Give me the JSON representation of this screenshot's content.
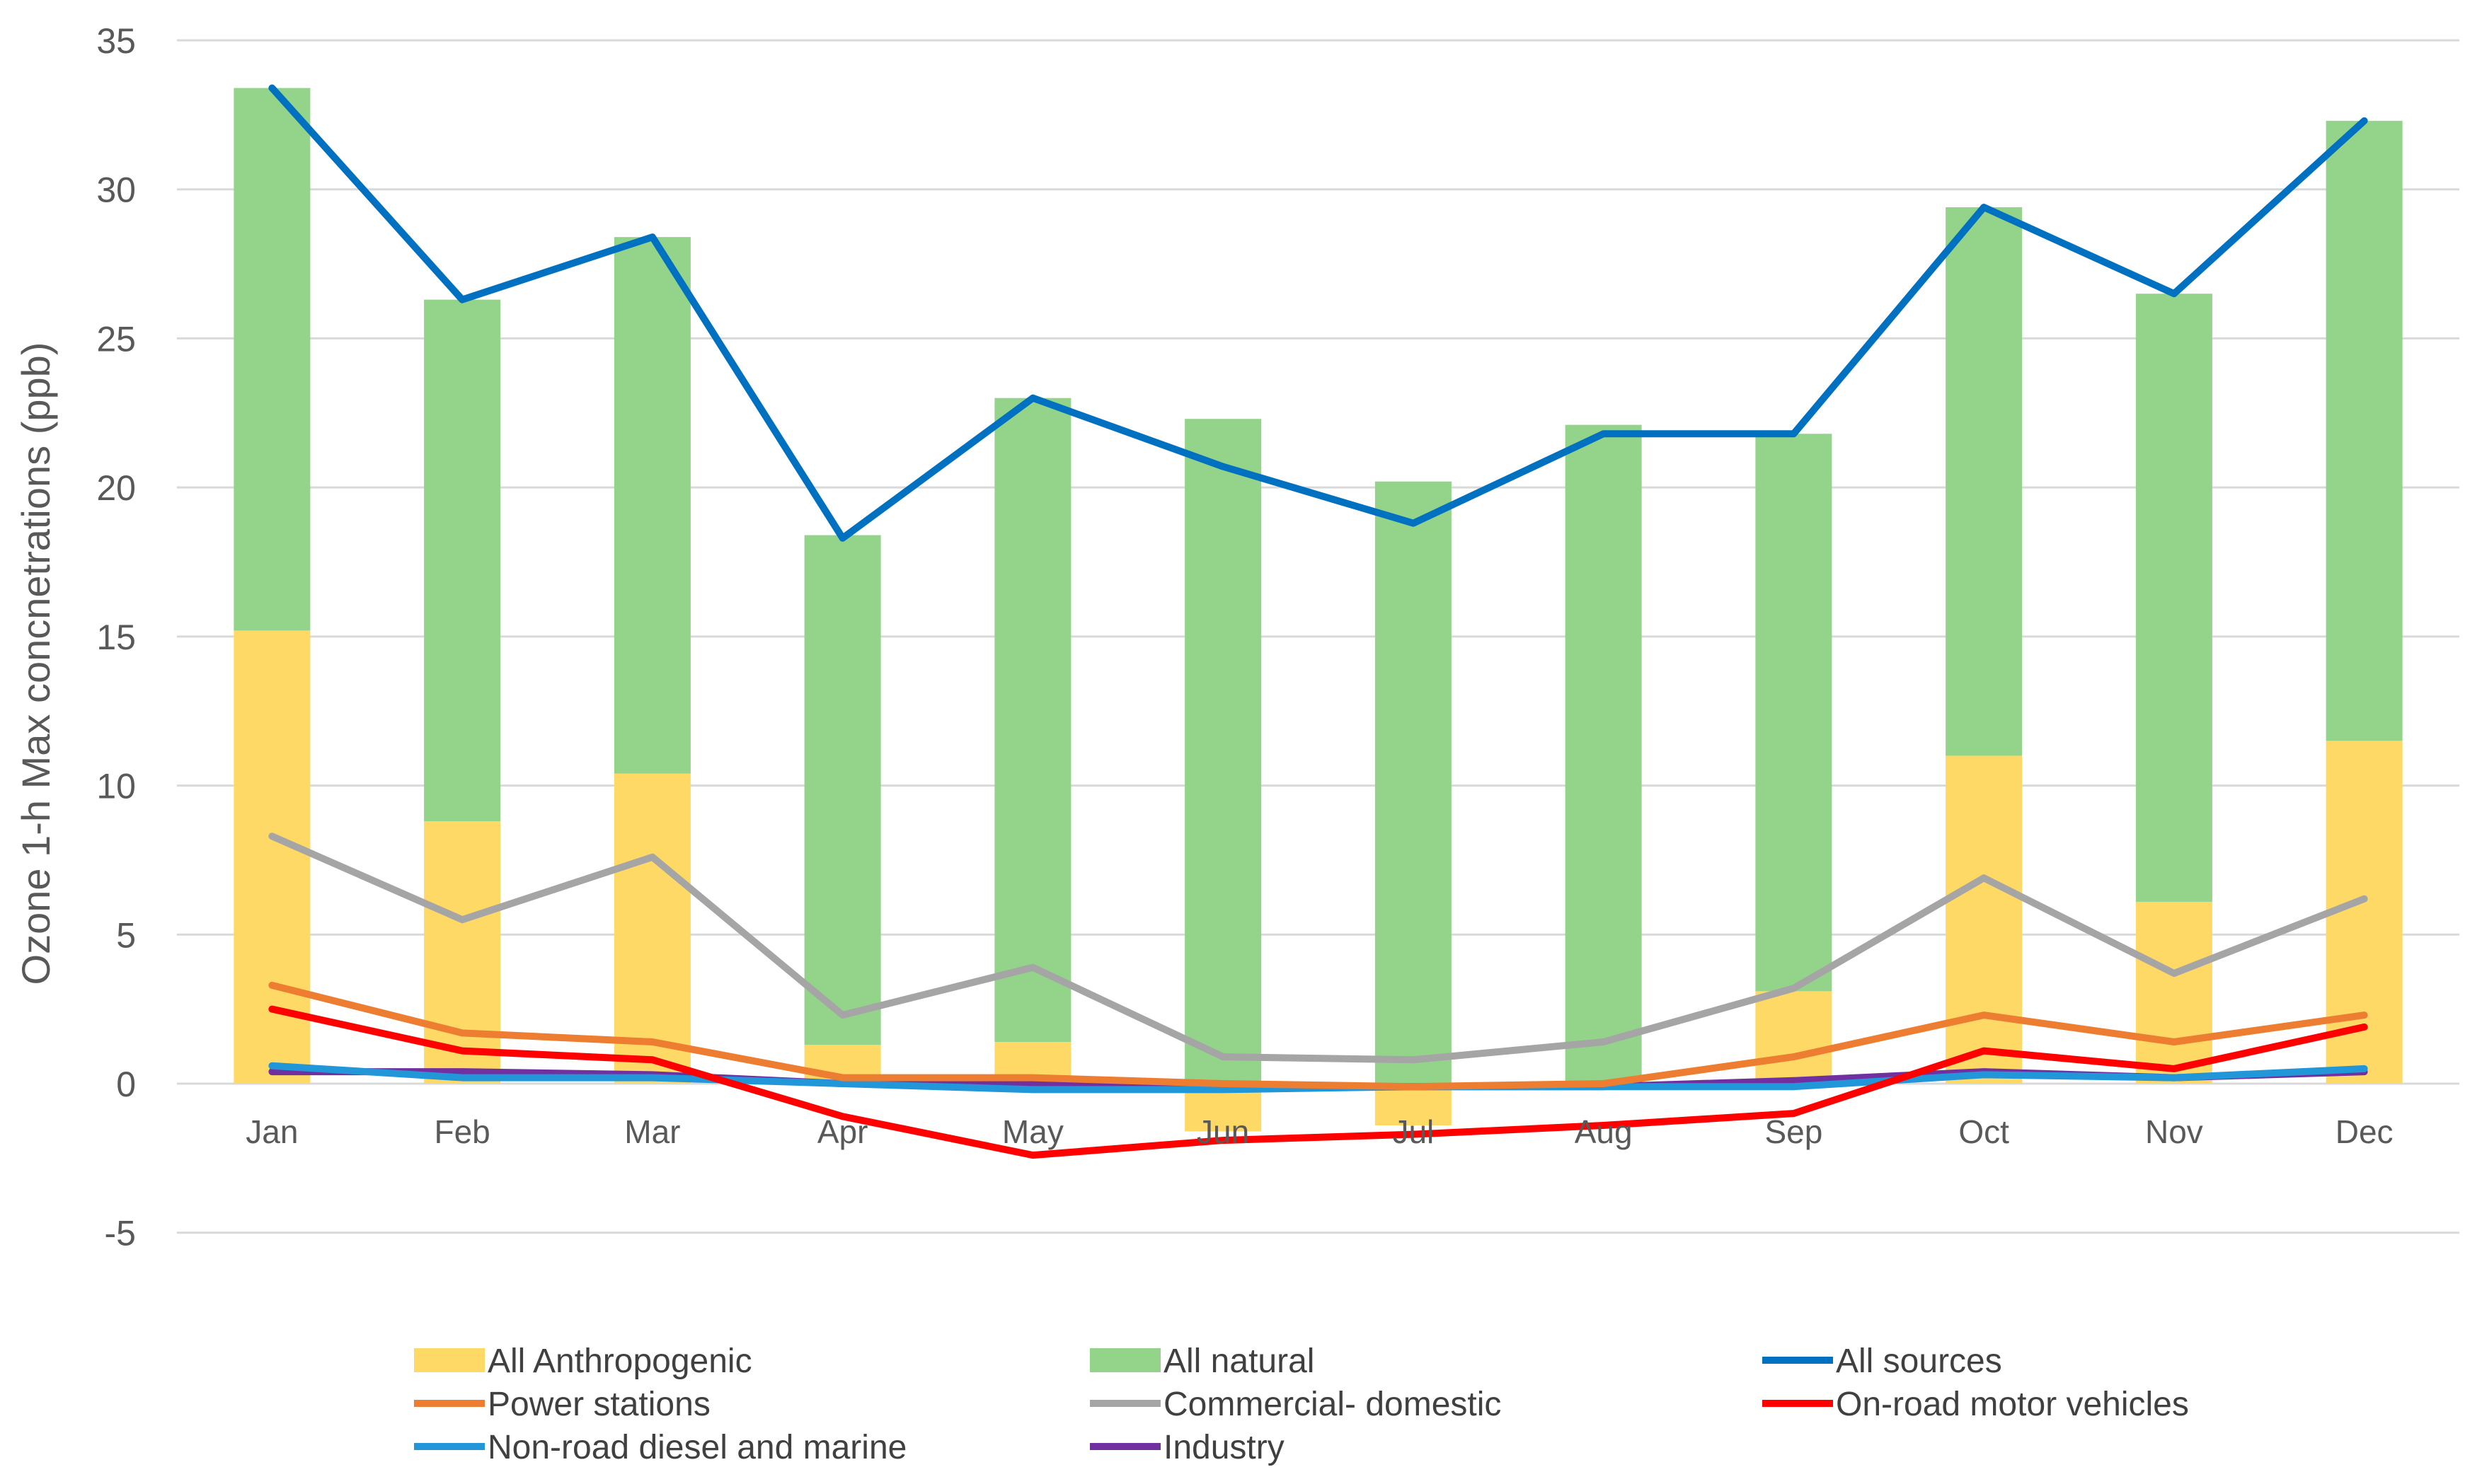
{
  "chart_data": {
    "type": "bar",
    "stacked": true,
    "title": "",
    "xlabel": "",
    "ylabel": "Ozone  1-h Max concnetrations (ppb)",
    "ylim": [
      -5,
      35
    ],
    "yticks": [
      -5,
      0,
      5,
      10,
      15,
      20,
      25,
      30,
      35
    ],
    "grid": true,
    "legend_position": "bottom",
    "categories": [
      "Jan",
      "Feb",
      "Mar",
      "Apr",
      "May",
      "Jun",
      "Jul",
      "Aug",
      "Sep",
      "Oct",
      "Nov",
      "Dec"
    ],
    "bar_series": [
      {
        "name": "All Anthropogenic",
        "color": "#FFD966",
        "values": [
          15.2,
          8.8,
          10.4,
          1.3,
          1.4,
          -1.6,
          -1.4,
          0.0,
          3.1,
          11.0,
          6.1,
          11.5
        ]
      },
      {
        "name": "All natural",
        "color": "#93D38A",
        "values": [
          18.2,
          17.5,
          18.0,
          17.1,
          21.6,
          22.3,
          20.2,
          22.1,
          18.7,
          18.4,
          20.4,
          20.8
        ]
      }
    ],
    "line_series": [
      {
        "name": "All sources",
        "color": "#0070C0",
        "values": [
          33.4,
          26.3,
          28.4,
          18.3,
          23.0,
          20.7,
          18.8,
          21.8,
          21.8,
          29.4,
          26.5,
          32.3
        ]
      },
      {
        "name": "Power stations",
        "color": "#ED7D31",
        "values": [
          3.3,
          1.7,
          1.4,
          0.2,
          0.2,
          0.0,
          -0.1,
          0.0,
          0.9,
          2.3,
          1.4,
          2.3
        ]
      },
      {
        "name": "Commercial- domestic",
        "color": "#A5A5A5",
        "values": [
          8.3,
          5.5,
          7.6,
          2.3,
          3.9,
          0.9,
          0.8,
          1.4,
          3.2,
          6.9,
          3.7,
          6.2
        ]
      },
      {
        "name": "On-road motor vehicles",
        "color": "#FF0000",
        "values": [
          2.5,
          1.1,
          0.8,
          -1.1,
          -2.4,
          -1.9,
          -1.7,
          -1.4,
          -1.0,
          1.1,
          0.5,
          1.9
        ]
      },
      {
        "name": "Non-road diesel and marine",
        "color": "#2196D8",
        "values": [
          0.6,
          0.2,
          0.2,
          0.0,
          -0.2,
          -0.2,
          -0.1,
          -0.1,
          -0.1,
          0.3,
          0.2,
          0.5
        ]
      },
      {
        "name": "Industry",
        "color": "#7030A0",
        "values": [
          0.4,
          0.4,
          0.3,
          0.0,
          0.0,
          -0.1,
          -0.1,
          -0.1,
          0.1,
          0.4,
          0.2,
          0.4
        ]
      }
    ],
    "legend": {
      "order": [
        "All Anthropogenic",
        "All natural",
        "All sources",
        "Power stations",
        "Commercial- domestic",
        "On-road motor vehicles",
        "Non-road diesel and marine",
        "Industry"
      ],
      "columns": 3
    }
  }
}
